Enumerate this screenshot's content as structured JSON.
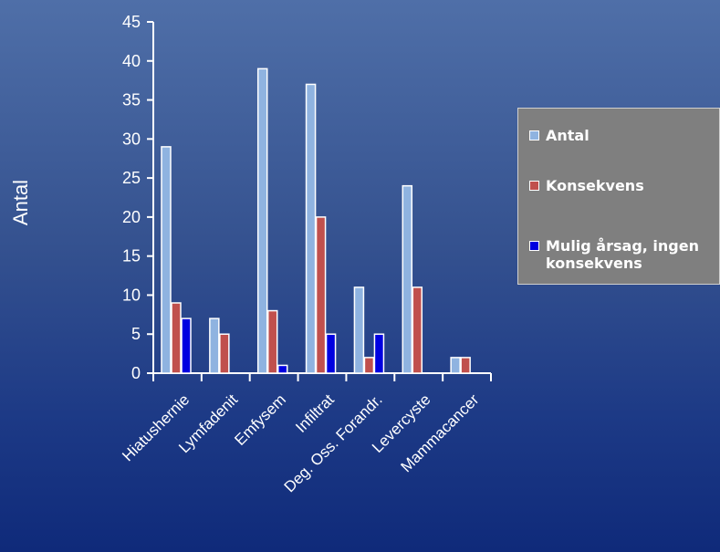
{
  "chart_data": {
    "type": "bar",
    "ylabel": "Antal",
    "ylim": [
      0,
      45
    ],
    "yticks": [
      "0",
      "5",
      "10",
      "15",
      "20",
      "25",
      "30",
      "35",
      "40",
      "45"
    ],
    "categories": [
      "Hiatushernie",
      "Lymfadenit",
      "Emfysem",
      "Infiltrat",
      "Deg. Oss. Forandr.",
      "Levercyste",
      "Mammacancer"
    ],
    "series": [
      {
        "name": "Antal",
        "color": "#8fb3e0",
        "values": [
          29,
          7,
          39,
          37,
          11,
          24,
          2
        ]
      },
      {
        "name": "Konsekvens",
        "color": "#c0504d",
        "values": [
          9,
          5,
          8,
          20,
          2,
          11,
          2
        ]
      },
      {
        "name": "Mulig årsag, ingen konsekvens",
        "color": "#0000e0",
        "values": [
          7,
          0,
          1,
          5,
          5,
          0,
          0
        ]
      }
    ],
    "legend_position": "right",
    "grid": false
  }
}
